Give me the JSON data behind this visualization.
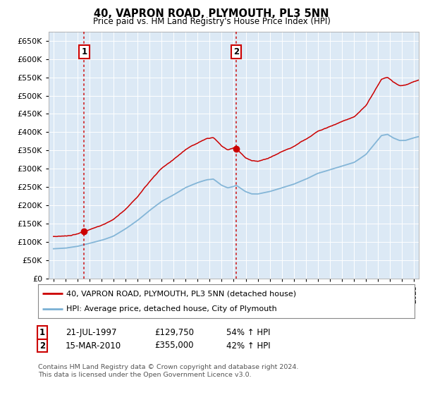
{
  "title": "40, VAPRON ROAD, PLYMOUTH, PL3 5NN",
  "subtitle": "Price paid vs. HM Land Registry's House Price Index (HPI)",
  "ylim": [
    0,
    675000
  ],
  "yticks": [
    0,
    50000,
    100000,
    150000,
    200000,
    250000,
    300000,
    350000,
    400000,
    450000,
    500000,
    550000,
    600000,
    650000
  ],
  "background_color": "#dce9f5",
  "legend_label_red": "40, VAPRON ROAD, PLYMOUTH, PL3 5NN (detached house)",
  "legend_label_blue": "HPI: Average price, detached house, City of Plymouth",
  "sale1_date": 1997.55,
  "sale1_price": 129750,
  "sale1_label": "1",
  "sale2_date": 2010.21,
  "sale2_price": 355000,
  "sale2_label": "2",
  "footer": "Contains HM Land Registry data © Crown copyright and database right 2024.\nThis data is licensed under the Open Government Licence v3.0.",
  "red_color": "#cc0000",
  "blue_color": "#7ab0d4",
  "dashed_color": "#cc0000",
  "xlim_left": 1994.6,
  "xlim_right": 2025.4
}
